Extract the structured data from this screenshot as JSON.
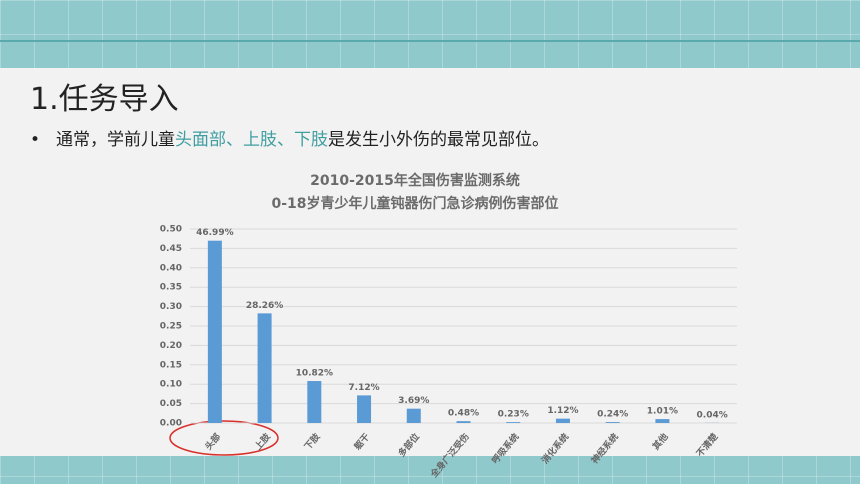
{
  "slide": {
    "title": "1.任务导入",
    "bullet": [
      "通常，学前儿童",
      "头面部、上肢、下肢",
      "是发生小外伤的最常见部位。"
    ]
  },
  "chart_data": {
    "type": "bar",
    "title": [
      "2010-2015年全国伤害监测系统",
      "0-18岁青少年儿童钝器伤门急诊病例伤害部位"
    ],
    "categories": [
      "头部",
      "上肢",
      "下肢",
      "躯干",
      "多部位",
      "全身广泛受伤",
      "呼吸系统",
      "消化系统",
      "神经系统",
      "其他",
      "不清楚"
    ],
    "values": [
      0.4699,
      0.2826,
      0.1082,
      0.0712,
      0.0369,
      0.0048,
      0.0023,
      0.0112,
      0.0024,
      0.0101,
      0.0004
    ],
    "value_labels": [
      "46.99%",
      "28.26%",
      "10.82%",
      "7.12%",
      "3.69%",
      "0.48%",
      "0.23%",
      "1.12%",
      "0.24%",
      "1.01%",
      "0.04%"
    ],
    "color": "#5b9bd5",
    "ylim": [
      0,
      0.5
    ],
    "yticks": [
      {
        "value": 0,
        "label": "0.00"
      },
      {
        "value": 0.05,
        "label": "0.05"
      },
      {
        "value": 0.1,
        "label": "0.10"
      },
      {
        "value": 0.15,
        "label": "0.15"
      },
      {
        "value": 0.2,
        "label": "0.20"
      },
      {
        "value": 0.25,
        "label": "0.25"
      },
      {
        "value": 0.3,
        "label": "0.30"
      },
      {
        "value": 0.35,
        "label": "0.35"
      },
      {
        "value": 0.4,
        "label": "0.40"
      },
      {
        "value": 0.45,
        "label": "0.45"
      },
      {
        "value": 0.5,
        "label": "0.50"
      }
    ],
    "grid": true
  }
}
